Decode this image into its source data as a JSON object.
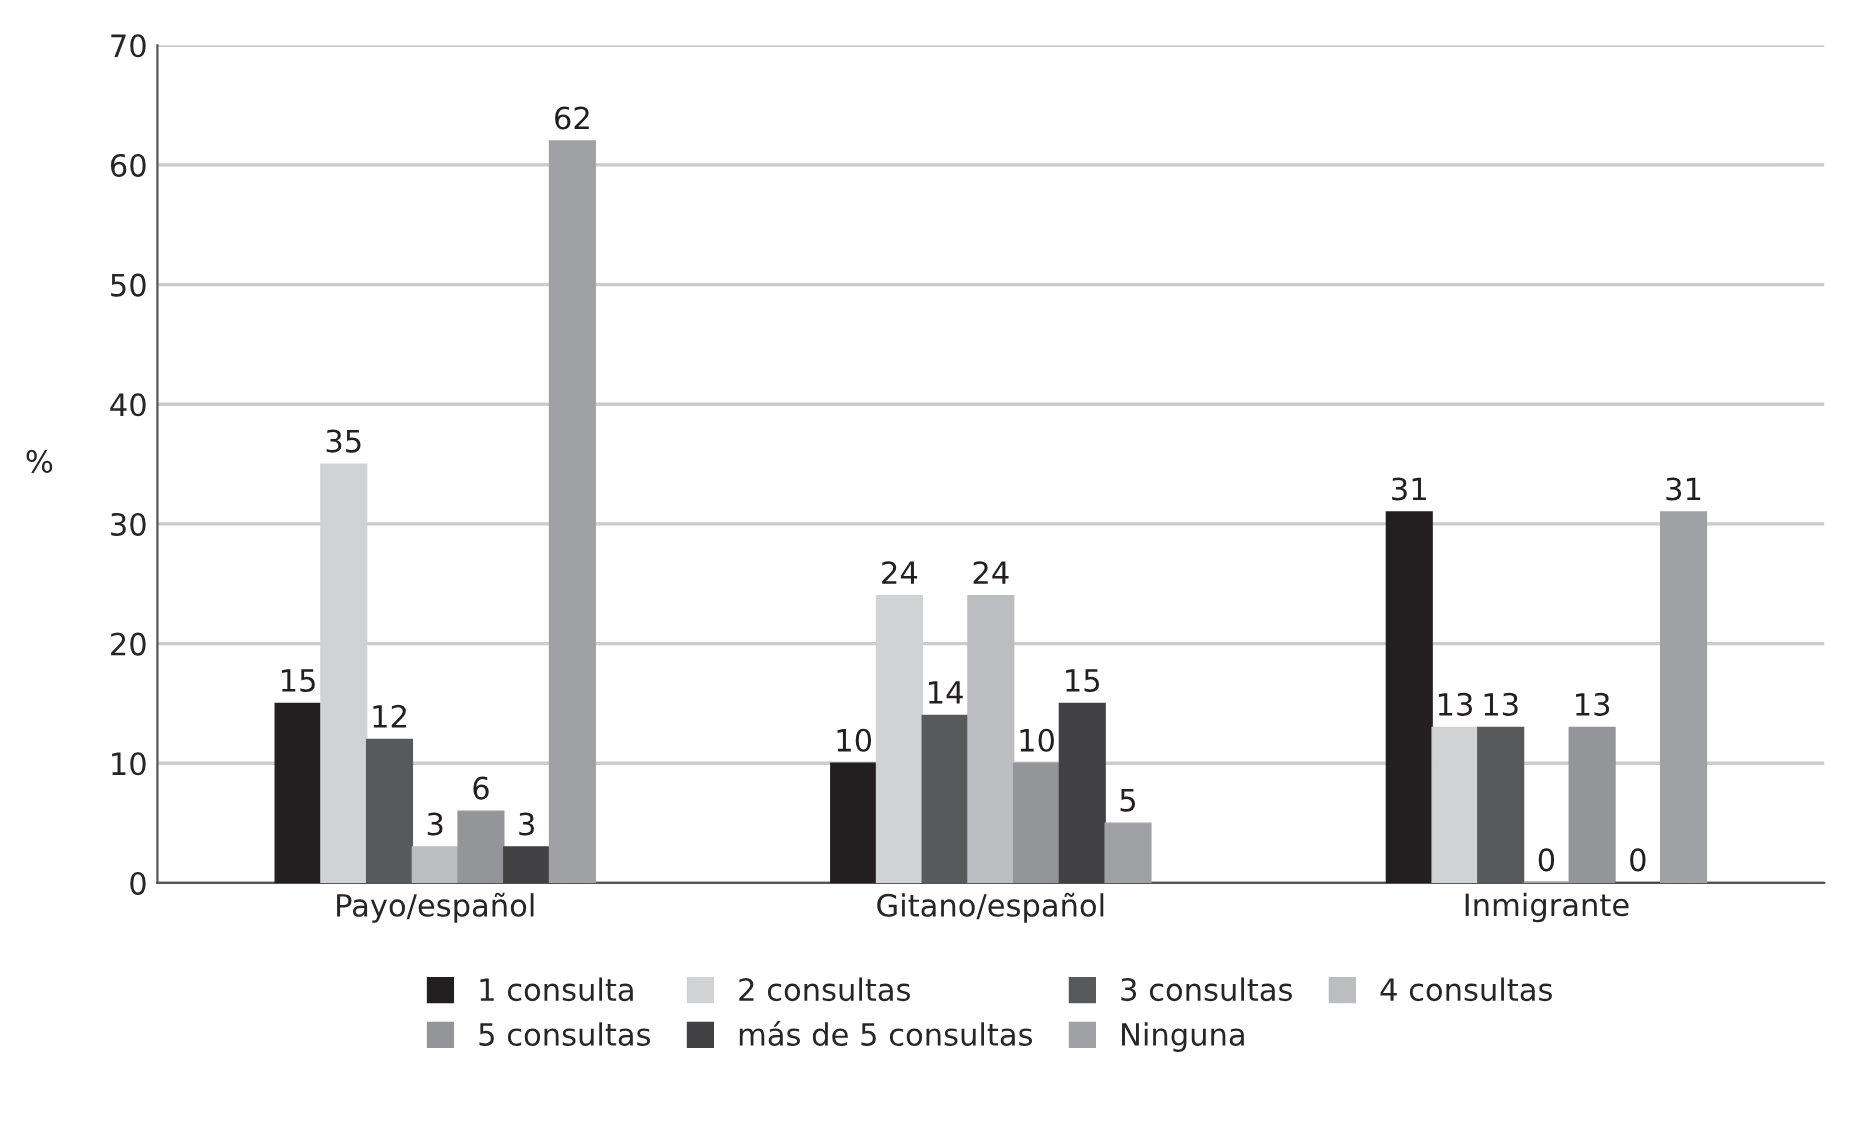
{
  "chart_data": {
    "type": "bar",
    "ylabel": "%",
    "categories": [
      "Payo/español",
      "Gitano/español",
      "Inmigrante"
    ],
    "series": [
      {
        "name": "1 consulta",
        "color": "#231f20",
        "values": [
          15,
          10,
          31
        ]
      },
      {
        "name": "2 consultas",
        "color": "#d1d2d4",
        "values": [
          35,
          24,
          13
        ]
      },
      {
        "name": "3 consultas",
        "color": "#58595b",
        "values": [
          12,
          14,
          13
        ]
      },
      {
        "name": "4 consultas",
        "color": "#bcbdc0",
        "values": [
          3,
          24,
          0
        ]
      },
      {
        "name": "5 consultas",
        "color": "#939598",
        "values": [
          6,
          10,
          13
        ]
      },
      {
        "name": "más de 5 consultas",
        "color": "#414042",
        "values": [
          3,
          15,
          0
        ]
      },
      {
        "name": "Ninguna",
        "color": "#a0a1a4",
        "values": [
          62,
          5,
          31
        ]
      }
    ],
    "ylim": [
      0,
      70
    ],
    "yticks": [
      0,
      10,
      20,
      30,
      40,
      50,
      60,
      70
    ],
    "grid": "y",
    "legend": "bottom",
    "data_labels": true
  }
}
